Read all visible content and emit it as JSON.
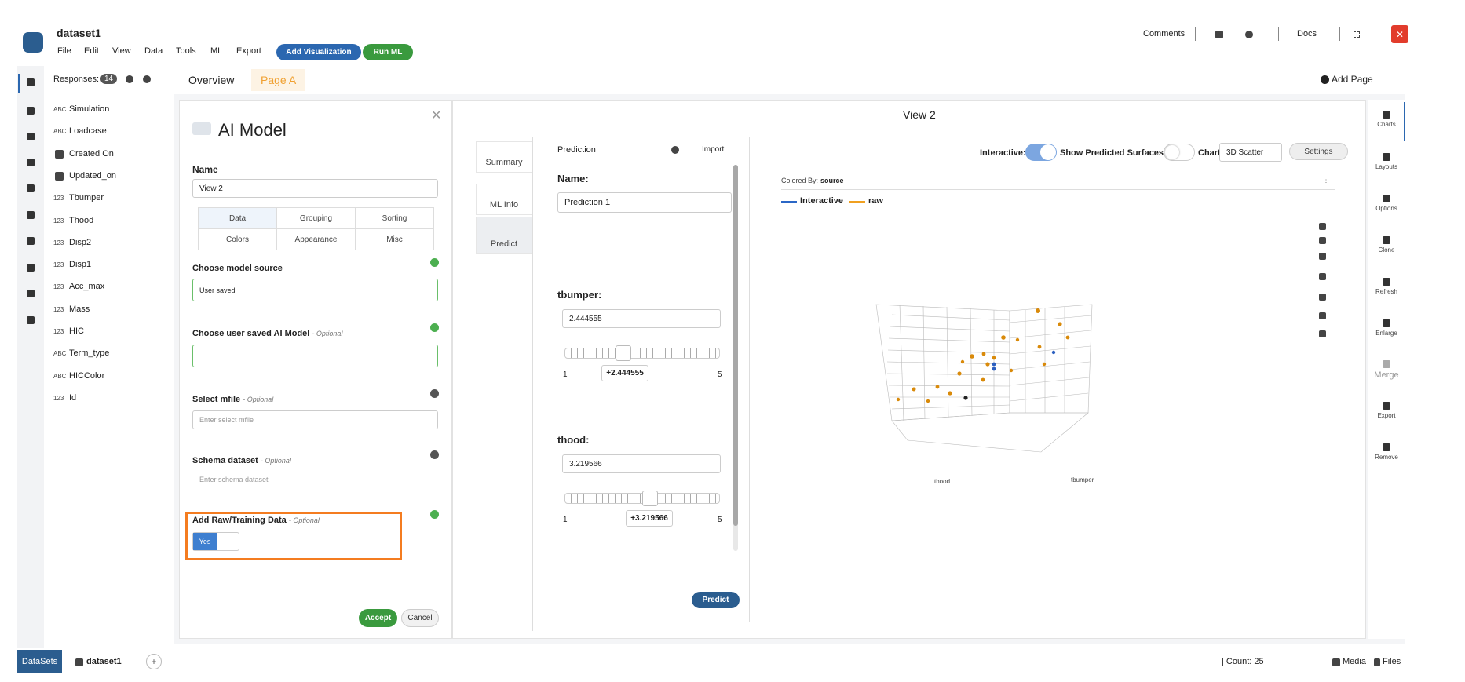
{
  "header": {
    "title": "dataset1",
    "menu": [
      "File",
      "Edit",
      "View",
      "Data",
      "Tools",
      "ML",
      "Export"
    ],
    "buttons": [
      "Add Visualization",
      "Run ML"
    ],
    "comments": "Comments",
    "docs": "Docs"
  },
  "sidebar": {
    "responses": "Responses:",
    "badge": "14",
    "fields": [
      {
        "type": "ABC",
        "name": "Simulation"
      },
      {
        "type": "ABC",
        "name": "Loadcase"
      },
      {
        "name": "Created On"
      },
      {
        "name": "Updated_on"
      },
      {
        "type": "123",
        "name": "Tbumper"
      },
      {
        "type": "123",
        "name": "Thood"
      },
      {
        "type": "123",
        "name": "Disp2"
      },
      {
        "type": "123",
        "name": "Disp1"
      },
      {
        "type": "123",
        "name": "Acc_max"
      },
      {
        "type": "123",
        "name": "Mass"
      },
      {
        "type": "123",
        "name": "HIC"
      },
      {
        "type": "ABC",
        "name": "Term_type"
      },
      {
        "type": "ABC",
        "name": "HICColor"
      },
      {
        "type": "123",
        "name": "Id"
      }
    ]
  },
  "tabs": [
    "Overview",
    "Page A"
  ],
  "add_page": "Add Page",
  "model_panel": {
    "title": "AI Model",
    "name_label": "Name",
    "name_value": "View 2",
    "subtabs": [
      "Data",
      "Grouping",
      "Sorting",
      "Colors",
      "Appearance",
      "Misc"
    ],
    "fields": [
      {
        "label": "Choose model source",
        "value": "User saved"
      },
      {
        "label": "Choose user saved AI Model",
        "optional": "- Optional"
      },
      {
        "label": "Select mfile",
        "optional": "- Optional",
        "placeholder": "Enter select mfile"
      },
      {
        "label": "Schema dataset",
        "optional": "- Optional",
        "placeholder": "Enter schema dataset"
      },
      {
        "label": "Add Raw/Training Data",
        "optional": "- Optional",
        "toggle": "Yes"
      }
    ],
    "accept": "Accept",
    "cancel": "Cancel"
  },
  "view": {
    "title": "View 2",
    "side_tabs": [
      "Summary",
      "ML Info",
      "Predict"
    ],
    "prediction": {
      "title": "Prediction",
      "import": "Import",
      "name_label": "Name:",
      "name_value": "Prediction 1",
      "params": [
        {
          "label": "tbumper:",
          "value": "2.444555",
          "min": "1",
          "max": "5",
          "slider_label": "+2.444555"
        },
        {
          "label": "thood:",
          "value": "3.219566",
          "min": "1",
          "max": "5",
          "slider_label": "+3.219566"
        }
      ],
      "predict": "Predict"
    },
    "controls": {
      "interactive": "Interactive:",
      "surfaces": "Show Predicted Surfaces:",
      "chart_type_label": "Chart Type:",
      "chart_type": "3D Scatter",
      "settings": "Settings"
    },
    "colored_by_label": "Colored By:",
    "colored_by": "source",
    "legend": [
      "Interactive",
      "raw"
    ],
    "axes": {
      "x": "thood",
      "y": "tbumper"
    }
  },
  "right_bar": [
    "Charts",
    "Layouts",
    "Options",
    "Clone",
    "Refresh",
    "Enlarge",
    "Merge",
    "Export",
    "Remove"
  ],
  "footer": {
    "datasets": "DataSets",
    "dataset": "dataset1",
    "count": "| Count: 25",
    "media": "Media",
    "files": "Files"
  }
}
